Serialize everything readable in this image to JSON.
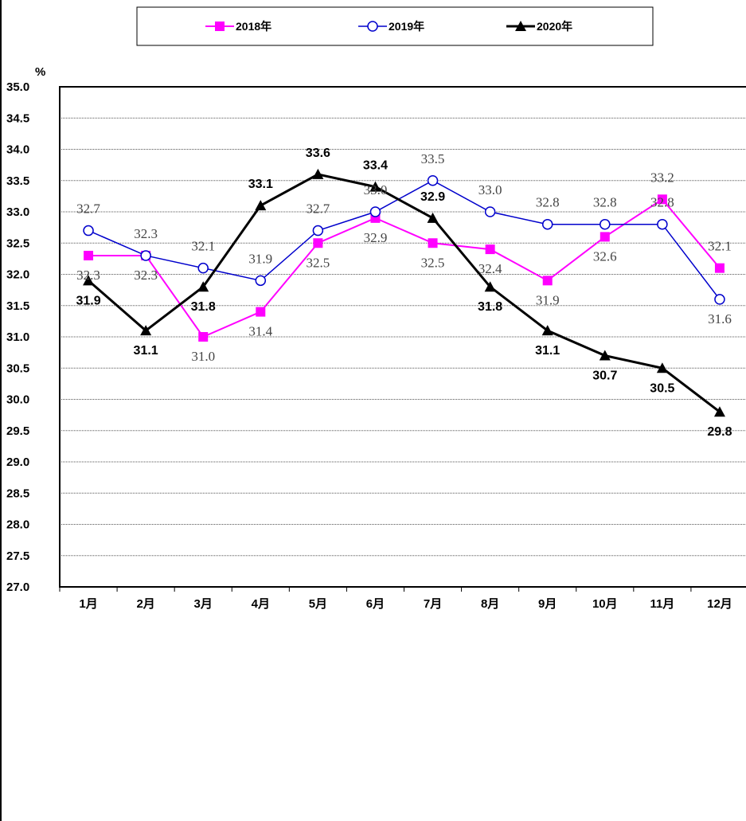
{
  "chart_data": {
    "type": "line",
    "ylabel": "%",
    "ylim": [
      27.0,
      35.0
    ],
    "ytick_step": 0.5,
    "categories": [
      "1月",
      "2月",
      "3月",
      "4月",
      "5月",
      "6月",
      "7月",
      "8月",
      "9月",
      "10月",
      "11月",
      "12月"
    ],
    "legend_position": "top-center",
    "grid": true,
    "series": [
      {
        "name": "2018年",
        "color": "#FF00FF",
        "marker": "square",
        "values": [
          32.3,
          32.3,
          31.0,
          31.4,
          32.5,
          32.9,
          32.5,
          32.4,
          31.9,
          32.6,
          33.2,
          32.1
        ]
      },
      {
        "name": "2019年",
        "color": "#0000CC",
        "marker": "circle-open",
        "values": [
          32.7,
          32.3,
          32.1,
          31.9,
          32.7,
          33.0,
          33.5,
          33.0,
          32.8,
          32.8,
          32.8,
          31.6
        ]
      },
      {
        "name": "2020年",
        "color": "#000000",
        "marker": "triangle",
        "values": [
          31.9,
          31.1,
          31.8,
          33.1,
          33.6,
          33.4,
          32.9,
          31.8,
          31.1,
          30.7,
          30.5,
          29.8
        ]
      }
    ]
  }
}
